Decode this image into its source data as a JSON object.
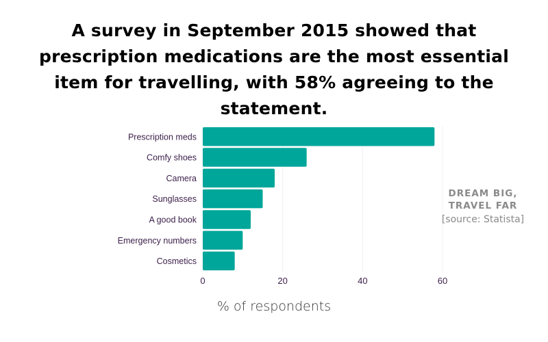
{
  "chart_data": {
    "type": "bar",
    "orientation": "horizontal",
    "title": "A survey in September 2015 showed that prescription medications are the most essential item for travelling, with 58% agreeing to the statement.",
    "categories": [
      "Prescription meds",
      "Comfy shoes",
      "Camera",
      "Sunglasses",
      "A good book",
      "Emergency numbers",
      "Cosmetics"
    ],
    "values": [
      58,
      26,
      18,
      15,
      12,
      10,
      8
    ],
    "xlabel": "% of respondents",
    "ylabel": "",
    "xlim": [
      0,
      60
    ],
    "xticks": [
      0,
      20,
      40,
      60
    ],
    "grid": true,
    "bar_color": "#00a69a"
  },
  "annotations": {
    "slogan_line1": "DREAM BIG,",
    "slogan_line2": "TRAVEL FAR",
    "source": "[source: Statista]"
  }
}
